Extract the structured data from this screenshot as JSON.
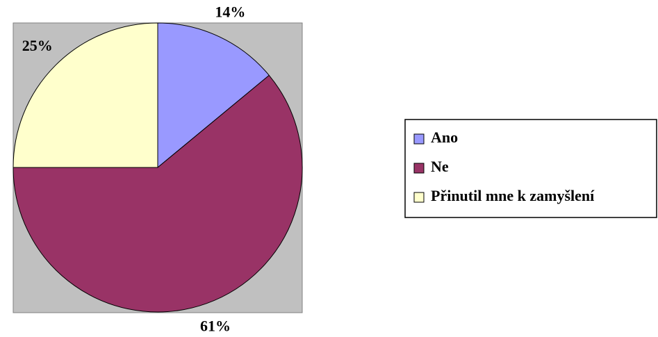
{
  "chart_data": {
    "type": "pie",
    "categories": [
      "Ano",
      "Ne",
      "Přinutil mne k zamyšlení"
    ],
    "values": [
      14,
      61,
      25
    ],
    "value_labels": [
      "14%",
      "61%",
      "25%"
    ],
    "colors": [
      "#9999ff",
      "#993366",
      "#ffffcc"
    ],
    "legend": "right"
  }
}
